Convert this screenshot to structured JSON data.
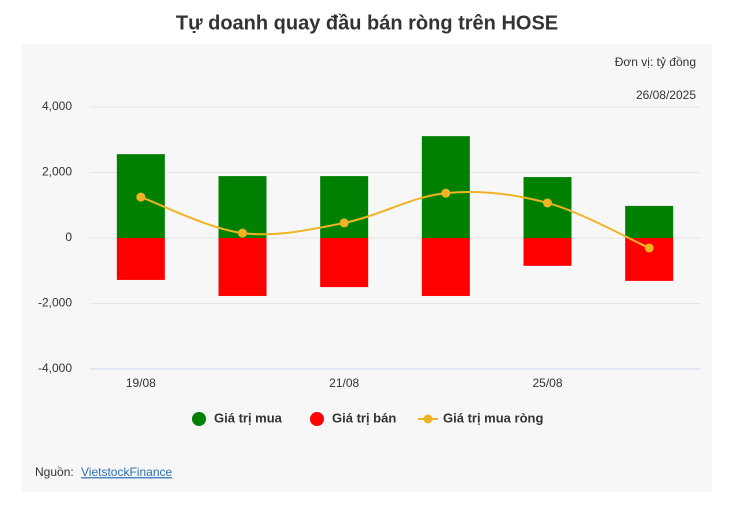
{
  "chart_data": {
    "type": "bar_line",
    "title": "Tự doanh quay đầu bán ròng trên HOSE",
    "unit_note": "Đơn vị: tỷ đồng",
    "date_note": "26/08/2025",
    "categories": [
      "19/08",
      null,
      "21/08",
      null,
      "25/08",
      null
    ],
    "series": [
      {
        "name": "Giá trị mua",
        "type": "bar",
        "color": "#008000",
        "values": [
          2560,
          1890,
          1890,
          3110,
          1860,
          980
        ]
      },
      {
        "name": "Giá trị bán",
        "type": "bar",
        "color": "#ff0000",
        "values": [
          -1280,
          -1770,
          -1500,
          -1770,
          -850,
          -1310
        ]
      },
      {
        "name": "Giá trị mua ròng",
        "type": "line",
        "color": "#f0b323",
        "values": [
          1250,
          150,
          460,
          1370,
          1070,
          -305
        ]
      }
    ],
    "ylim": [
      -4000,
      4000
    ],
    "yticks": [
      {
        "value": -4000,
        "label": "-4,000"
      },
      {
        "value": -2000,
        "label": "-2,000"
      },
      0,
      {
        "value": 2000,
        "label": "2,000"
      },
      {
        "value": 4000,
        "label": "4,000"
      }
    ],
    "grid": true,
    "legend": "bottom",
    "source_prefix": "Nguồn: ",
    "source_link": "VietstockFinance"
  }
}
